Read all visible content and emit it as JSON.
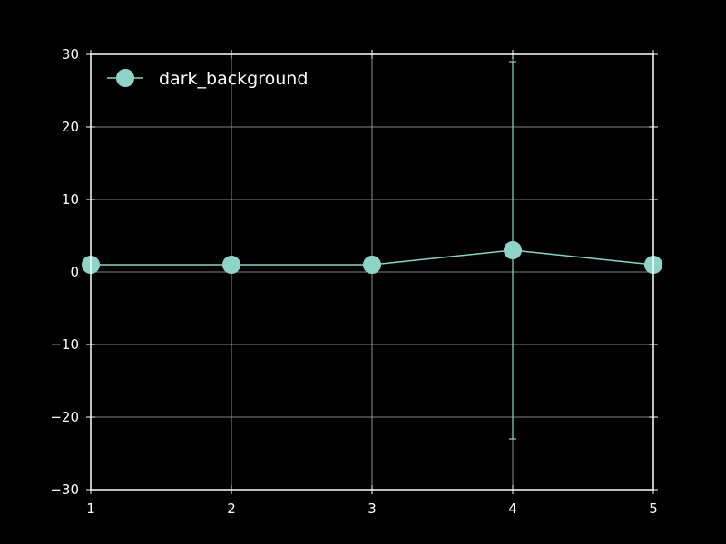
{
  "chart_data": {
    "type": "line",
    "title": "",
    "xlabel": "",
    "ylabel": "",
    "x": [
      1,
      2,
      3,
      4,
      5
    ],
    "series": [
      {
        "name": "dark_background",
        "y": [
          1,
          1,
          1,
          3,
          1
        ],
        "yerr": [
          0,
          0,
          0,
          26,
          0
        ]
      }
    ],
    "xlim": [
      1,
      5
    ],
    "ylim": [
      -30,
      30
    ],
    "xticks": [
      1,
      2,
      3,
      4,
      5
    ],
    "xtick_labels": [
      "1",
      "2",
      "3",
      "4",
      "5"
    ],
    "yticks": [
      -30,
      -20,
      -10,
      0,
      10,
      20,
      30
    ],
    "ytick_labels": [
      "−30",
      "−20",
      "−10",
      "0",
      "10",
      "20",
      "30"
    ],
    "grid": true,
    "legend": "upper-left",
    "colors": {
      "background": "#000000",
      "axes": "#ffffff",
      "grid": "#b0b0b0",
      "series": "#8dd3c7"
    }
  }
}
